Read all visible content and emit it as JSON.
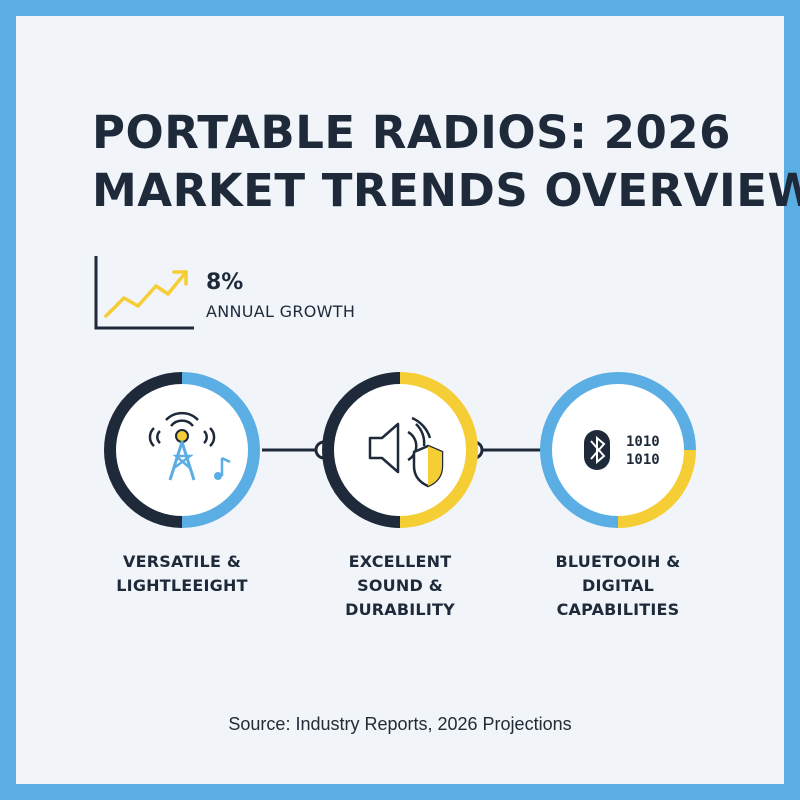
{
  "title": {
    "line1": "PORTABLE RADIOS: 2026",
    "line2": "MARKET TRENDS OVERVIEW"
  },
  "growth": {
    "value": "8%",
    "label": "ANNUAL GROWTH",
    "icon": "trend-up-icon"
  },
  "features": [
    {
      "name": "versatile-lightweight",
      "lines": [
        "VERSATILE &",
        "LIGHTLEEIGHT"
      ],
      "icon": "radio-tower-icon"
    },
    {
      "name": "sound-durability",
      "lines": [
        "EXCELLENT",
        "SOUND &",
        "DURABILITY"
      ],
      "icon": "speaker-shield-icon"
    },
    {
      "name": "bluetooth-digital",
      "lines": [
        "BLUETOOIH &",
        "DIGITAL",
        "CAPABILITIES"
      ],
      "icon": "bluetooth-binary-icon"
    }
  ],
  "binary": [
    "1010",
    "1010"
  ],
  "source": "Source: Industry Reports, 2026 Projections",
  "colors": {
    "frame": "#5aaee3",
    "background": "#f1f4f8",
    "navy": "#1e2a3a",
    "blue": "#5aaee3",
    "yellow": "#f5cd34"
  }
}
